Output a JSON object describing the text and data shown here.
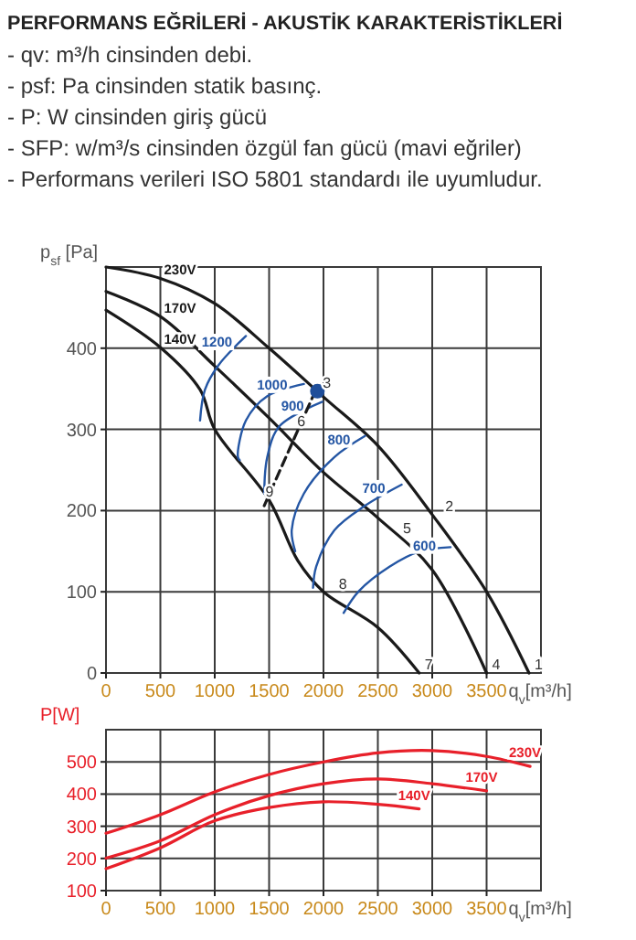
{
  "chart_data": [
    {
      "type": "line",
      "title": "PERFORMANS EĞRİLERİ - AKUSTİK KARAKTERİSTİKLERİ",
      "xlabel": "q$_{v}$[m³/h]",
      "ylabel": "p$_{sf}$ [Pa]",
      "xlim": [
        0,
        4000
      ],
      "xticks": [
        0,
        500,
        1000,
        1500,
        2000,
        2500,
        3000,
        3500
      ],
      "ylim": [
        0,
        500
      ],
      "yticks": [
        0,
        100,
        200,
        300,
        400
      ],
      "grid": true,
      "marker": "none",
      "line_style": "solid",
      "series": [
        {
          "name": "230V",
          "color": "#1a1a1a",
          "x": [
            0,
            500,
            1000,
            1500,
            2000,
            2500,
            3000,
            3500,
            3890
          ],
          "values": [
            500,
            486,
            455,
            400,
            340,
            280,
            195,
            100,
            0
          ]
        },
        {
          "name": "170V",
          "color": "#1a1a1a",
          "x": [
            0,
            500,
            1000,
            1500,
            2000,
            2500,
            3000,
            3500
          ],
          "values": [
            470,
            439,
            378,
            314,
            247,
            191,
            127,
            0
          ]
        },
        {
          "name": "140V",
          "color": "#1a1a1a",
          "x": [
            0,
            500,
            865,
            1000,
            1500,
            1765,
            2000,
            2500,
            2880
          ],
          "values": [
            447,
            401,
            349,
            300,
            213,
            138,
            100,
            56,
            0
          ]
        },
        {
          "name": "1200",
          "color": "#2456a4",
          "x": [
            1287,
            1034,
            910,
            865
          ],
          "values": [
            415,
            379,
            349,
            311
          ]
        },
        {
          "name": "1000",
          "color": "#2456a4",
          "x": [
            1820,
            1483,
            1287,
            1213,
            1230
          ],
          "values": [
            356,
            341,
            311,
            266,
            262
          ]
        },
        {
          "name": "900",
          "color": "#2456a4",
          "x": [
            1989,
            1596,
            1483,
            1455
          ],
          "values": [
            334,
            304,
            266,
            221
          ]
        },
        {
          "name": "800",
          "color": "#2456a4",
          "x": [
            2382,
            2101,
            1820,
            1708,
            1740
          ],
          "values": [
            292,
            266,
            221,
            176,
            150
          ]
        },
        {
          "name": "700",
          "color": "#2456a4",
          "x": [
            2719,
            2382,
            2101,
            1933,
            1904
          ],
          "values": [
            232,
            206,
            176,
            131,
            105
          ]
        },
        {
          "name": "600",
          "color": "#2456a4",
          "x": [
            3169,
            2888,
            2607,
            2326,
            2185
          ],
          "values": [
            155,
            150,
            131,
            101,
            74
          ]
        },
        {
          "color": "#1a1a1a",
          "line_style": "dashed",
          "x": [
            1455,
            1904
          ],
          "values": [
            206,
            341
          ]
        },
        {
          "type": "scatter",
          "marker": "circle",
          "color": "#1f4e9a",
          "x": [
            1944
          ],
          "values": [
            347
          ]
        }
      ],
      "annotations": [
        "- qv: m³/h cinsinden debi.",
        "- psf: Pa cinsinden statik basınç.",
        "- P: W cinsinden giriş gücü",
        "- SFP: w/m³/s cinsinden özgül fan gücü (mavi eğriler)",
        "- Performans verileri ISO 5801 standardı ile uyumludur.",
        {
          "text": "1",
          "x": 3890,
          "y": 0
        },
        {
          "text": "2",
          "x": 3070,
          "y": 195
        },
        {
          "text": "3",
          "x": 1944,
          "y": 347
        },
        {
          "text": "4",
          "x": 3500,
          "y": 0
        },
        {
          "text": "5",
          "x": 2680,
          "y": 168
        },
        {
          "text": "6",
          "x": 1708,
          "y": 300
        },
        {
          "text": "7",
          "x": 2880,
          "y": 0
        },
        {
          "text": "8",
          "x": 2090,
          "y": 99
        },
        {
          "text": "9",
          "x": 1415,
          "y": 213
        }
      ]
    },
    {
      "type": "line",
      "xlabel": "q$_{v}$[m³/h]",
      "ylabel": "P[W]",
      "xlim": [
        0,
        4000
      ],
      "xticks": [
        0,
        500,
        1000,
        1500,
        2000,
        2500,
        3000,
        3500
      ],
      "ylim": [
        100,
        600
      ],
      "yticks": [
        100,
        200,
        300,
        400,
        500
      ],
      "grid": true,
      "marker": "none",
      "line_style": "solid",
      "series": [
        {
          "name": "230V",
          "color": "#e8202a",
          "x": [
            0,
            500,
            1000,
            1500,
            2000,
            2500,
            3000,
            3500,
            3900
          ],
          "values": [
            278,
            336,
            407,
            461,
            500,
            528,
            535,
            517,
            486
          ]
        },
        {
          "name": "170V",
          "color": "#e8202a",
          "x": [
            0,
            500,
            1000,
            1500,
            2000,
            2500,
            3000,
            3500
          ],
          "values": [
            201,
            255,
            336,
            395,
            432,
            447,
            432,
            410
          ]
        },
        {
          "name": "140V",
          "color": "#e8202a",
          "x": [
            0,
            500,
            1000,
            1500,
            2000,
            2500,
            2880
          ],
          "values": [
            168,
            233,
            317,
            358,
            376,
            368,
            354
          ]
        }
      ]
    }
  ]
}
